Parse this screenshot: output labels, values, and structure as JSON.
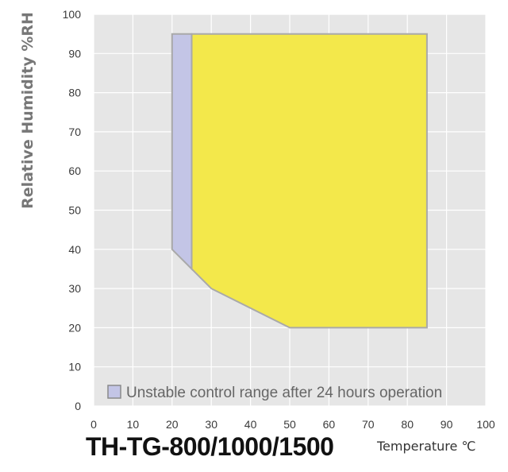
{
  "chart_data": {
    "type": "area",
    "title": "TH-TG-800/1000/1500",
    "xlabel": "Temperature ℃",
    "ylabel": "Relative Humidity %RH",
    "xlim": [
      0,
      100
    ],
    "ylim": [
      0,
      100
    ],
    "xticks": [
      "0",
      "10",
      "20",
      "30",
      "40",
      "50",
      "60",
      "70",
      "80",
      "90",
      "100"
    ],
    "yticks": [
      "0",
      "10",
      "20",
      "30",
      "40",
      "50",
      "60",
      "70",
      "80",
      "90",
      "100"
    ],
    "grid": true,
    "legend_position": "bottom-left",
    "series": [
      {
        "name": "Unstable control range after 24 hours operation",
        "color": "#c3c5e6",
        "polygon": [
          [
            20,
            95
          ],
          [
            25,
            95
          ],
          [
            25,
            35
          ],
          [
            20,
            40
          ]
        ]
      },
      {
        "name": "",
        "color": "#f3e84b",
        "polygon": [
          [
            25,
            95
          ],
          [
            85,
            95
          ],
          [
            85,
            20
          ],
          [
            50,
            20
          ],
          [
            30,
            30
          ],
          [
            25,
            35
          ]
        ]
      }
    ],
    "colors": {
      "plot_background": "#e6e6e6",
      "grid": "#ffffff",
      "outline": "#a9a9a9"
    }
  }
}
